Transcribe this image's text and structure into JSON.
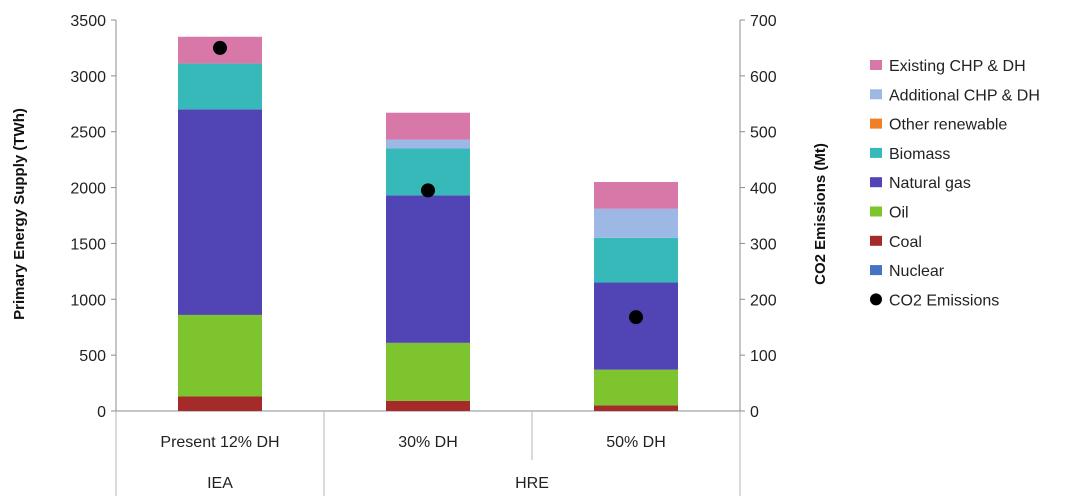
{
  "chart_data": {
    "type": "bar",
    "stacked": true,
    "categories": [
      "Present 12% DH",
      "30% DH",
      "50% DH"
    ],
    "groups": [
      {
        "label": "IEA",
        "categories": [
          "Present 12% DH"
        ]
      },
      {
        "label": "HRE",
        "categories": [
          "30% DH",
          "50% DH"
        ]
      }
    ],
    "ylabel": "Primary Energy Supply (TWh)",
    "ylim": [
      0,
      3500
    ],
    "yticks": [
      "0",
      "500",
      "1000",
      "1500",
      "2000",
      "2500",
      "3000",
      "3500"
    ],
    "ylabel2": "CO2 Emissions (Mt)",
    "ylim2": [
      0,
      700
    ],
    "yticks2": [
      "0",
      "100",
      "200",
      "300",
      "400",
      "500",
      "600",
      "700"
    ],
    "grid": false,
    "legend_position": "right",
    "series": [
      {
        "name": "Nuclear",
        "color": "#4472C4",
        "values": [
          0,
          0,
          0
        ]
      },
      {
        "name": "Coal",
        "color": "#A52A2A",
        "values": [
          130,
          90,
          50
        ]
      },
      {
        "name": "Oil",
        "color": "#7DC42E",
        "values": [
          730,
          520,
          320
        ]
      },
      {
        "name": "Natural gas",
        "color": "#5145B6",
        "values": [
          1840,
          1320,
          780
        ]
      },
      {
        "name": "Biomass",
        "color": "#37B9B9",
        "values": [
          410,
          420,
          400
        ]
      },
      {
        "name": "Other renewable",
        "color": "#F07F26",
        "values": [
          0,
          0,
          0
        ]
      },
      {
        "name": "Additional CHP & DH",
        "color": "#9DB8E4",
        "values": [
          0,
          80,
          260
        ]
      },
      {
        "name": "Existing CHP & DH",
        "color": "#D878A8",
        "values": [
          240,
          240,
          240
        ]
      }
    ],
    "scatter": {
      "name": "CO2 Emissions",
      "color": "#000000",
      "axis": "secondary",
      "values": [
        650,
        395,
        168
      ]
    },
    "legend_order": [
      "Existing CHP & DH",
      "Additional CHP & DH",
      "Other renewable",
      "Biomass",
      "Natural gas",
      "Oil",
      "Coal",
      "Nuclear",
      "CO2 Emissions"
    ]
  }
}
